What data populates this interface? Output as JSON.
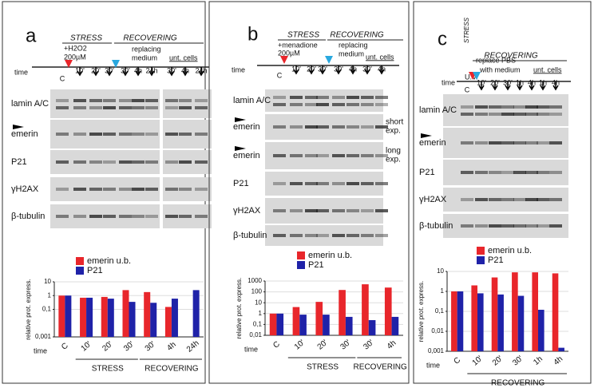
{
  "panels": [
    {
      "letter": "a",
      "stress": "STRESS",
      "recovering": "RECOVERING",
      "treatment": [
        "+H2O2",
        "200µM"
      ],
      "medium": [
        "replacing",
        "medium"
      ],
      "untreated": "unt. cells",
      "time": "time",
      "times": [
        "C",
        "10'",
        "20'",
        "30'",
        "30'",
        "4h",
        "24h",
        "30'",
        "4h",
        "24h"
      ],
      "rows": [
        "lamin A/C",
        "emerin",
        "P21",
        "γH2AX",
        "β-tubulin"
      ],
      "notes": []
    },
    {
      "letter": "b",
      "stress": "STRESS",
      "recovering": "RECOVERING",
      "treatment": [
        "+menadione",
        "200µM"
      ],
      "medium": [
        "replacing",
        "medium"
      ],
      "untreated": "unt. cells",
      "time": "time",
      "times": [
        "C",
        "10'",
        "20'",
        "30'",
        "30'",
        "4h",
        "30'",
        "4h"
      ],
      "rows": [
        "lamin A/C",
        "emerin",
        "emerin",
        "P21",
        "γH2AX",
        "β-tubulin"
      ],
      "notes": [
        [
          "short",
          "exp."
        ],
        [
          "long",
          "exp."
        ]
      ]
    },
    {
      "letter": "c",
      "stress": "STRESS",
      "recovering": "RECOVERING",
      "treatment": [
        "U.V."
      ],
      "medium": [
        "replace PBS",
        "with medium"
      ],
      "untreated": "unt. cells",
      "time": "time",
      "times": [
        "C",
        "10'",
        "20'",
        "30'",
        "1h",
        "4h",
        "1h",
        "4h"
      ],
      "rows": [
        "lamin A/C",
        "emerin",
        "P21",
        "γH2AX",
        "β-tubulin"
      ],
      "notes": []
    }
  ],
  "chart_data": [
    {
      "type": "bar",
      "y_label": "relative prot. express.",
      "x_label": "time",
      "log": true,
      "categories": [
        "C",
        "10'",
        "20'",
        "30'",
        "30'",
        "4h",
        "24h"
      ],
      "series": [
        {
          "name": "emerin u.b.",
          "color": "#e8262b",
          "values": [
            1,
            0.7,
            0.8,
            2.5,
            1.8,
            0.15,
            null
          ]
        },
        {
          "name": "P21",
          "color": "#1f22a8",
          "values": [
            1,
            0.7,
            0.6,
            0.35,
            0.3,
            0.6,
            2.5
          ]
        }
      ],
      "ylim": [
        0.001,
        10
      ],
      "yticks": [
        {
          "value": 0.001,
          "label": "0,001"
        },
        {
          "value": 0.1,
          "label": "0,1"
        },
        1,
        10
      ],
      "group_labels": [
        "STRESS",
        "RECOVERING"
      ]
    },
    {
      "type": "bar",
      "y_label": "relative prot. express.",
      "x_label": "time",
      "log": true,
      "categories": [
        "C",
        "10'",
        "20'",
        "30'",
        "30'",
        "4h"
      ],
      "series": [
        {
          "name": "emerin u.b.",
          "color": "#e8262b",
          "values": [
            1,
            4,
            12,
            150,
            500,
            250
          ]
        },
        {
          "name": "P21",
          "color": "#1f22a8",
          "values": [
            1,
            0.8,
            0.8,
            0.5,
            0.25,
            0.5
          ]
        }
      ],
      "ylim": [
        0.01,
        1000
      ],
      "yticks": [
        {
          "value": 0.01,
          "label": "0,01"
        },
        {
          "value": 0.1,
          "label": "0,1"
        },
        1,
        10,
        100,
        1000
      ],
      "group_labels": [
        "STRESS",
        "RECOVERING"
      ]
    },
    {
      "type": "bar",
      "y_label": "relative prot. express.",
      "x_label": "time",
      "log": true,
      "categories": [
        "C",
        "10'",
        "20'",
        "30'",
        "1h",
        "4h"
      ],
      "series": [
        {
          "name": "emerin u.b.",
          "color": "#e8262b",
          "values": [
            1,
            2,
            5,
            9,
            9,
            8
          ]
        },
        {
          "name": "P21",
          "color": "#1f22a8",
          "values": [
            1,
            0.8,
            0.7,
            0.6,
            0.12,
            0.0015
          ]
        }
      ],
      "ylim": [
        0.001,
        10
      ],
      "yticks": [
        {
          "value": 0.001,
          "label": "0,001"
        },
        {
          "value": 0.01,
          "label": "0,01"
        },
        {
          "value": 0.1,
          "label": "0,1"
        },
        1,
        10
      ],
      "group_labels": [
        "RECOVERING"
      ]
    }
  ]
}
